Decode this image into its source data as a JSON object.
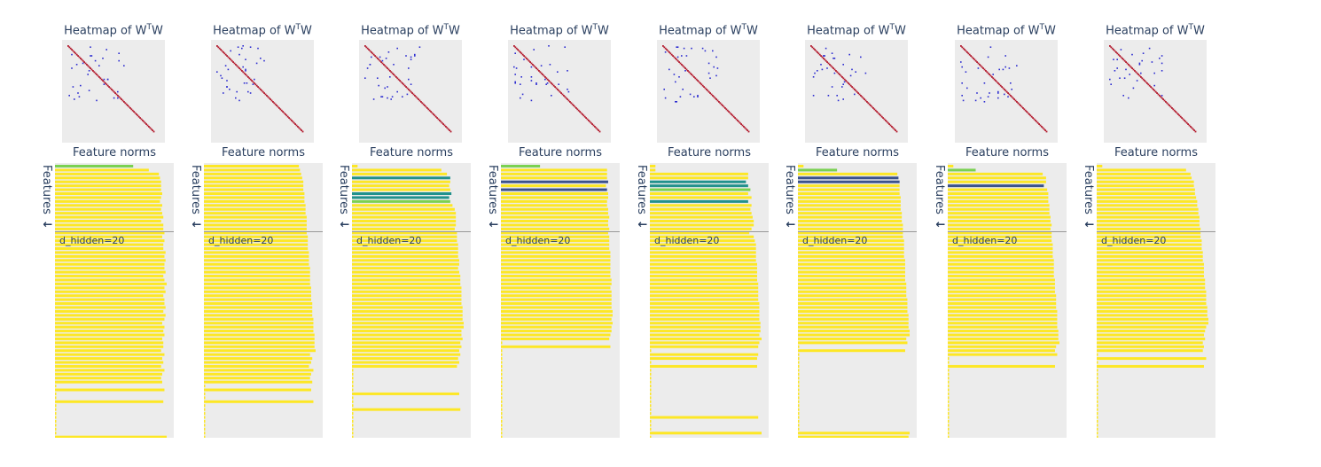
{
  "panel_titles": {
    "heatmap_prefix": "Heatmap of W",
    "heatmap_sup": "T",
    "heatmap_suffix": "W",
    "norms": "Feature norms"
  },
  "axis_labels": {
    "features": "Features",
    "features_arrow": "↓"
  },
  "annotation": {
    "d_hidden": "d_hidden=20"
  },
  "colors": {
    "panel_bg": "#ececec",
    "diag": "#b2182b",
    "offdiag": "#2c2cd0",
    "yellow": "#fde725",
    "yellow_light": "#f6e96a",
    "green": "#7ad151",
    "teal": "#21918c",
    "navy": "#3b528b",
    "hline": "#999999"
  },
  "chart_data": [
    {
      "type": "heatmap",
      "title": "Heatmap of WᵀW",
      "norm_bars": {
        "title": "Feature norms",
        "ylabel": "Features",
        "annotation": "d_hidden=20",
        "values": [
          0.7,
          0.84,
          0.93,
          0.94,
          0.95,
          0.95,
          0.95,
          0.96,
          0.95,
          0.94,
          0.96,
          0.95,
          0.96,
          0.97,
          0.95,
          0.97,
          0.97,
          0.98,
          0.96,
          0.98,
          0.97,
          0.97,
          0.99,
          0.98,
          0.99,
          0.98,
          0.98,
          0.99,
          0.97,
          0.98,
          1.0,
          0.98,
          0.99,
          0.97,
          0.98,
          0.98,
          0.99,
          0.97,
          0.99,
          0.98,
          0.96,
          0.98,
          0.97,
          0.98,
          0.96,
          0.97,
          0.97,
          0.95,
          0.98,
          0.96,
          0.97,
          0.95,
          0.98,
          0.96,
          0.95,
          0.96,
          0.0,
          0.98,
          0.0,
          0.0,
          0.97,
          0.0,
          0.0,
          0.0,
          0.0,
          0.0,
          0.0,
          0.0,
          0.0,
          1.0
        ]
      }
    },
    {
      "type": "heatmap",
      "title": "Heatmap of WᵀW",
      "norm_bars": {
        "title": "Feature norms",
        "ylabel": "Features",
        "annotation": "d_hidden=20",
        "values": [
          0.85,
          0.86,
          0.87,
          0.88,
          0.89,
          0.89,
          0.89,
          0.9,
          0.9,
          0.9,
          0.91,
          0.91,
          0.91,
          0.92,
          0.92,
          0.92,
          0.92,
          0.92,
          0.93,
          0.93,
          0.93,
          0.93,
          0.94,
          0.94,
          0.94,
          0.94,
          0.95,
          0.95,
          0.95,
          0.95,
          0.95,
          0.96,
          0.96,
          0.96,
          0.96,
          0.97,
          0.97,
          0.97,
          0.97,
          0.98,
          0.98,
          0.98,
          0.98,
          0.99,
          0.99,
          0.99,
          0.99,
          1.0,
          0.95,
          0.97,
          0.96,
          0.94,
          0.98,
          0.96,
          0.95,
          0.97,
          0.0,
          0.96,
          0.0,
          0.0,
          0.98,
          0.0,
          0.0,
          0.0,
          0.0,
          0.0,
          0.0,
          0.0,
          0.0,
          0.0
        ]
      }
    },
    {
      "type": "heatmap",
      "title": "Heatmap of WᵀW",
      "norm_bars": {
        "title": "Feature norms",
        "ylabel": "Features",
        "annotation": "d_hidden=20",
        "values": [
          0.05,
          0.8,
          0.85,
          0.88,
          0.88,
          0.87,
          0.88,
          0.89,
          0.87,
          0.88,
          0.9,
          0.92,
          0.93,
          0.93,
          0.93,
          0.93,
          0.92,
          0.94,
          0.94,
          0.94,
          0.95,
          0.95,
          0.95,
          0.95,
          0.96,
          0.96,
          0.95,
          0.96,
          0.97,
          0.97,
          0.97,
          0.98,
          0.98,
          0.98,
          0.98,
          0.98,
          0.99,
          0.99,
          0.99,
          0.99,
          1.0,
          1.0,
          0.98,
          0.98,
          0.99,
          0.97,
          0.98,
          0.96,
          0.97,
          0.95,
          0.96,
          0.94,
          0.0,
          0.0,
          0.0,
          0.0,
          0.0,
          0.0,
          0.96,
          0.0,
          0.0,
          0.0,
          0.97,
          0.0,
          0.0,
          0.0,
          0.0,
          0.0,
          0.0,
          0.0
        ]
      }
    },
    {
      "type": "heatmap",
      "title": "Heatmap of WᵀW",
      "norm_bars": {
        "title": "Feature norms",
        "ylabel": "Features",
        "annotation": "d_hidden=20",
        "values": [
          0.35,
          0.95,
          0.95,
          0.95,
          0.96,
          0.94,
          0.95,
          0.96,
          0.96,
          0.95,
          0.95,
          0.96,
          0.96,
          0.97,
          0.96,
          0.96,
          0.97,
          0.96,
          0.97,
          0.97,
          0.97,
          0.97,
          0.98,
          0.98,
          0.98,
          0.98,
          0.98,
          0.98,
          0.98,
          0.99,
          0.99,
          0.98,
          0.99,
          0.99,
          0.99,
          0.99,
          0.99,
          1.0,
          1.0,
          0.99,
          1.0,
          0.99,
          0.99,
          0.98,
          0.97,
          0.0,
          0.98,
          0.0,
          0.0,
          0.0,
          0.0,
          0.0,
          0.0,
          0.0,
          0.0,
          0.0,
          0.0,
          0.0,
          0.0,
          0.0,
          0.0,
          0.0,
          0.0,
          0.0,
          0.0,
          0.0,
          0.0,
          0.0,
          0.0,
          0.0
        ]
      }
    },
    {
      "type": "heatmap",
      "title": "Heatmap of WᵀW",
      "norm_bars": {
        "title": "Feature norms",
        "ylabel": "Features",
        "annotation": "d_hidden=20",
        "values": [
          0.05,
          0.05,
          0.88,
          0.88,
          0.86,
          0.88,
          0.9,
          0.88,
          0.91,
          0.88,
          0.91,
          0.9,
          0.91,
          0.92,
          0.93,
          0.93,
          0.91,
          0.89,
          0.93,
          0.94,
          0.95,
          0.95,
          0.95,
          0.95,
          0.95,
          0.96,
          0.96,
          0.96,
          0.96,
          0.96,
          0.97,
          0.97,
          0.97,
          0.97,
          0.97,
          0.98,
          0.98,
          0.98,
          0.98,
          0.98,
          0.99,
          0.99,
          0.99,
          0.98,
          1.0,
          0.98,
          0.97,
          0.0,
          0.97,
          0.96,
          0.0,
          0.96,
          0.0,
          0.0,
          0.0,
          0.0,
          0.0,
          0.0,
          0.0,
          0.0,
          0.0,
          0.0,
          0.0,
          0.0,
          0.97,
          0.0,
          0.0,
          0.0,
          1.0,
          0.0
        ]
      }
    },
    {
      "type": "heatmap",
      "title": "Heatmap of WᵀW",
      "norm_bars": {
        "title": "Feature norms",
        "ylabel": "Features",
        "annotation": "d_hidden=20",
        "values": [
          0.05,
          0.35,
          0.89,
          0.9,
          0.91,
          0.91,
          0.91,
          0.91,
          0.92,
          0.92,
          0.92,
          0.92,
          0.93,
          0.93,
          0.93,
          0.94,
          0.94,
          0.94,
          0.94,
          0.95,
          0.95,
          0.95,
          0.95,
          0.95,
          0.96,
          0.96,
          0.96,
          0.96,
          0.96,
          0.96,
          0.97,
          0.97,
          0.97,
          0.97,
          0.98,
          0.98,
          0.98,
          0.98,
          0.99,
          0.99,
          0.99,
          0.99,
          1.0,
          1.0,
          0.97,
          0.98,
          0.0,
          0.96,
          0.0,
          0.0,
          0.0,
          0.0,
          0.0,
          0.0,
          0.0,
          0.0,
          0.0,
          0.0,
          0.0,
          0.0,
          0.0,
          0.0,
          0.0,
          0.0,
          0.0,
          0.0,
          0.0,
          0.0,
          1.0,
          0.99
        ]
      }
    },
    {
      "type": "heatmap",
      "title": "Heatmap of WᵀW",
      "norm_bars": {
        "title": "Feature norms",
        "ylabel": "Features",
        "annotation": "d_hidden=20",
        "values": [
          0.05,
          0.25,
          0.85,
          0.88,
          0.88,
          0.86,
          0.89,
          0.9,
          0.9,
          0.9,
          0.91,
          0.91,
          0.91,
          0.92,
          0.92,
          0.93,
          0.92,
          0.93,
          0.93,
          0.93,
          0.94,
          0.94,
          0.94,
          0.94,
          0.95,
          0.95,
          0.95,
          0.95,
          0.95,
          0.96,
          0.96,
          0.96,
          0.96,
          0.97,
          0.97,
          0.97,
          0.97,
          0.98,
          0.98,
          0.98,
          0.98,
          0.98,
          0.99,
          0.99,
          0.99,
          1.0,
          0.97,
          0.96,
          0.98,
          0.0,
          0.0,
          0.96,
          0.0,
          0.0,
          0.0,
          0.0,
          0.0,
          0.0,
          0.0,
          0.0,
          0.0,
          0.0,
          0.0,
          0.0,
          0.0,
          0.0,
          0.0,
          0.0,
          0.0,
          0.0
        ]
      }
    },
    {
      "type": "heatmap",
      "title": "Heatmap of WᵀW",
      "norm_bars": {
        "title": "Feature norms",
        "ylabel": "Features",
        "annotation": "d_hidden=20",
        "values": [
          0.05,
          0.8,
          0.84,
          0.85,
          0.87,
          0.87,
          0.88,
          0.88,
          0.89,
          0.9,
          0.9,
          0.91,
          0.91,
          0.92,
          0.92,
          0.92,
          0.93,
          0.93,
          0.93,
          0.94,
          0.94,
          0.94,
          0.95,
          0.95,
          0.95,
          0.96,
          0.96,
          0.96,
          0.96,
          0.97,
          0.97,
          0.97,
          0.98,
          0.98,
          0.98,
          0.98,
          0.99,
          0.99,
          0.99,
          1.0,
          1.0,
          0.98,
          0.97,
          0.96,
          0.97,
          0.95,
          0.96,
          0.95,
          0.0,
          0.98,
          0.0,
          0.96,
          0.0,
          0.0,
          0.0,
          0.0,
          0.0,
          0.0,
          0.0,
          0.0,
          0.0,
          0.0,
          0.0,
          0.0,
          0.0,
          0.0,
          0.0,
          0.0,
          0.0,
          0.0
        ]
      }
    }
  ]
}
